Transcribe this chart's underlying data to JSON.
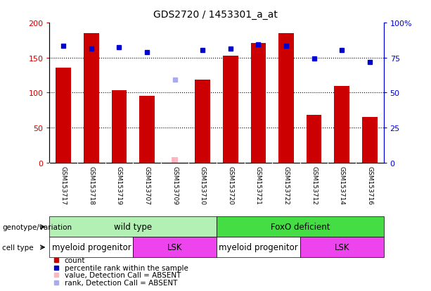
{
  "title": "GDS2720 / 1453301_a_at",
  "samples": [
    "GSM153717",
    "GSM153718",
    "GSM153719",
    "GSM153707",
    "GSM153709",
    "GSM153710",
    "GSM153720",
    "GSM153721",
    "GSM153722",
    "GSM153712",
    "GSM153714",
    "GSM153716"
  ],
  "bar_values": [
    136,
    185,
    103,
    95,
    null,
    119,
    153,
    171,
    185,
    68,
    110,
    65
  ],
  "absent_bar_value": 8,
  "absent_bar_idx": 4,
  "rank_values": [
    167,
    163,
    165,
    158,
    null,
    161,
    163,
    169,
    167,
    149,
    161,
    144
  ],
  "rank_absent_value": 119,
  "rank_absent_idx": 4,
  "ylim_left": [
    0,
    200
  ],
  "ylim_right": [
    0,
    100
  ],
  "yticks_left": [
    0,
    50,
    100,
    150,
    200
  ],
  "yticks_right": [
    0,
    25,
    50,
    75,
    100
  ],
  "ytick_labels_left": [
    "0",
    "50",
    "100",
    "150",
    "200"
  ],
  "ytick_labels_right": [
    "0",
    "25",
    "50",
    "75",
    "100%"
  ],
  "grid_values": [
    50,
    100,
    150
  ],
  "genotype_groups": [
    {
      "label": "wild type",
      "start": 0,
      "end": 6,
      "color": "#b3f0b3"
    },
    {
      "label": "FoxO deficient",
      "start": 6,
      "end": 12,
      "color": "#44dd44"
    }
  ],
  "cell_type_groups": [
    {
      "label": "myeloid progenitor",
      "start": 0,
      "end": 3,
      "color": "#ffffff"
    },
    {
      "label": "LSK",
      "start": 3,
      "end": 6,
      "color": "#ee44ee"
    },
    {
      "label": "myeloid progenitor",
      "start": 6,
      "end": 9,
      "color": "#ffffff"
    },
    {
      "label": "LSK",
      "start": 9,
      "end": 12,
      "color": "#ee44ee"
    }
  ],
  "legend_items": [
    {
      "color": "#cc0000",
      "label": "count"
    },
    {
      "color": "#0000cc",
      "label": "percentile rank within the sample"
    },
    {
      "color": "#ffb6c1",
      "label": "value, Detection Call = ABSENT"
    },
    {
      "color": "#aaaaee",
      "label": "rank, Detection Call = ABSENT"
    }
  ],
  "bar_color": "#cc0000",
  "absent_bar_color": "#ffb6c1",
  "rank_dot_color": "#0000cc",
  "rank_absent_color": "#aaaaee",
  "sample_bg_color": "#d3d3d3",
  "bar_width": 0.55,
  "bg_color": "#ffffff",
  "left_axis_color": "#cc0000",
  "right_axis_color": "#0000cc",
  "label_arrow_color": "#555555",
  "geno_label": "genotype/variation",
  "cell_label": "cell type"
}
